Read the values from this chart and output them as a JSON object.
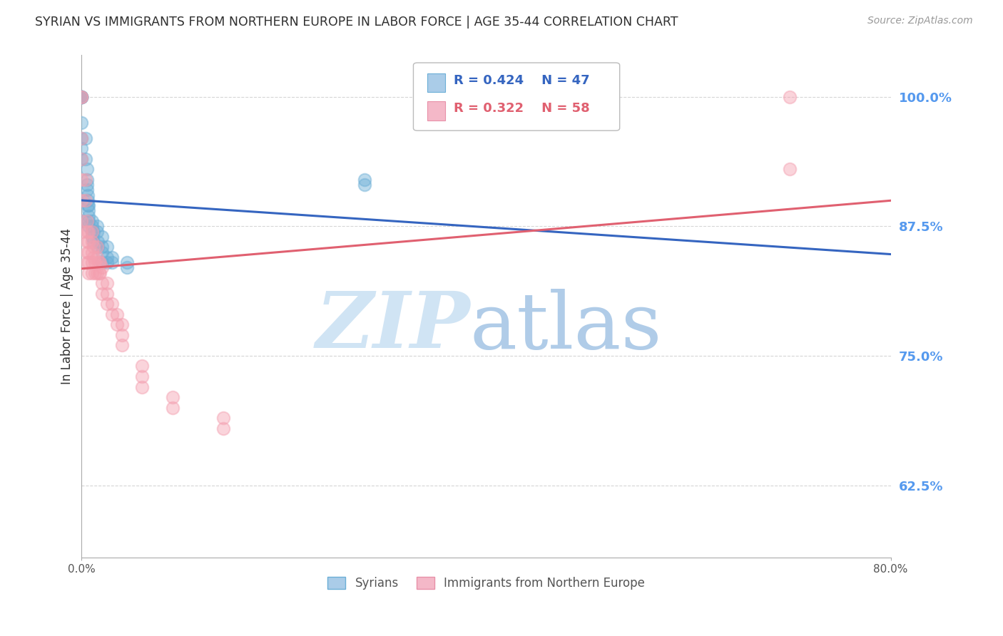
{
  "title": "SYRIAN VS IMMIGRANTS FROM NORTHERN EUROPE IN LABOR FORCE | AGE 35-44 CORRELATION CHART",
  "source": "Source: ZipAtlas.com",
  "ylabel": "In Labor Force | Age 35-44",
  "ytick_labels": [
    "62.5%",
    "75.0%",
    "87.5%",
    "100.0%"
  ],
  "ytick_values": [
    0.625,
    0.75,
    0.875,
    1.0
  ],
  "xlim": [
    0.0,
    0.8
  ],
  "ylim": [
    0.555,
    1.04
  ],
  "series1_label": "Syrians",
  "series2_label": "Immigrants from Northern Europe",
  "series1_color": "#6baed6",
  "series2_color": "#f4a0b0",
  "line1_color": "#3565c0",
  "line2_color": "#e06070",
  "title_color": "#303030",
  "yaxis_tick_color": "#5599ee",
  "background_color": "#ffffff",
  "syrians_x": [
    0.0,
    0.0,
    0.0,
    0.0,
    0.0,
    0.0,
    0.0,
    0.0,
    0.0,
    0.0,
    0.004,
    0.004,
    0.005,
    0.005,
    0.005,
    0.005,
    0.006,
    0.006,
    0.006,
    0.007,
    0.007,
    0.007,
    0.007,
    0.007,
    0.01,
    0.01,
    0.01,
    0.01,
    0.012,
    0.012,
    0.015,
    0.015,
    0.016,
    0.016,
    0.02,
    0.02,
    0.02,
    0.02,
    0.025,
    0.025,
    0.025,
    0.03,
    0.03,
    0.045,
    0.045,
    0.28,
    0.28
  ],
  "syrians_y": [
    1.0,
    1.0,
    1.0,
    1.0,
    1.0,
    0.975,
    0.96,
    0.95,
    0.94,
    0.88,
    0.96,
    0.94,
    0.93,
    0.92,
    0.915,
    0.91,
    0.905,
    0.9,
    0.895,
    0.895,
    0.89,
    0.885,
    0.88,
    0.875,
    0.88,
    0.875,
    0.87,
    0.865,
    0.87,
    0.86,
    0.875,
    0.87,
    0.86,
    0.855,
    0.865,
    0.855,
    0.85,
    0.84,
    0.855,
    0.845,
    0.84,
    0.845,
    0.84,
    0.84,
    0.835,
    0.92,
    0.915
  ],
  "northern_eu_x": [
    0.0,
    0.0,
    0.0,
    0.0,
    0.0,
    0.0,
    0.0,
    0.0,
    0.004,
    0.004,
    0.005,
    0.005,
    0.005,
    0.005,
    0.005,
    0.007,
    0.007,
    0.007,
    0.007,
    0.007,
    0.01,
    0.01,
    0.01,
    0.01,
    0.01,
    0.012,
    0.012,
    0.013,
    0.013,
    0.015,
    0.015,
    0.015,
    0.017,
    0.017,
    0.018,
    0.018,
    0.02,
    0.02,
    0.02,
    0.025,
    0.025,
    0.025,
    0.03,
    0.03,
    0.035,
    0.035,
    0.04,
    0.04,
    0.04,
    0.06,
    0.06,
    0.06,
    0.09,
    0.09,
    0.14,
    0.14,
    0.7,
    0.7
  ],
  "northern_eu_y": [
    1.0,
    1.0,
    0.96,
    0.94,
    0.92,
    0.9,
    0.88,
    0.87,
    0.92,
    0.9,
    0.88,
    0.87,
    0.86,
    0.85,
    0.84,
    0.87,
    0.86,
    0.85,
    0.84,
    0.83,
    0.87,
    0.86,
    0.85,
    0.84,
    0.83,
    0.855,
    0.845,
    0.84,
    0.83,
    0.855,
    0.845,
    0.83,
    0.84,
    0.83,
    0.84,
    0.83,
    0.835,
    0.82,
    0.81,
    0.82,
    0.81,
    0.8,
    0.8,
    0.79,
    0.79,
    0.78,
    0.78,
    0.77,
    0.76,
    0.74,
    0.73,
    0.72,
    0.71,
    0.7,
    0.69,
    0.68,
    1.0,
    0.93
  ],
  "line1_x0": 0.0,
  "line1_x1": 0.8,
  "line2_x0": 0.0,
  "line2_x1": 0.8
}
